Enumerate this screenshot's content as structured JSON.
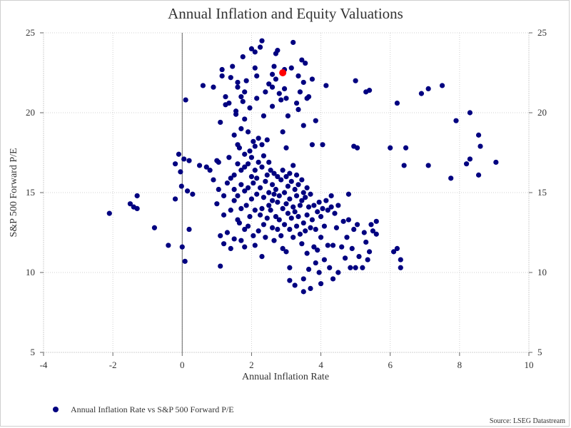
{
  "chart_data": {
    "type": "scatter",
    "title": "Annual Inflation and Equity Valuations",
    "xlabel": "Annual Inflation Rate",
    "ylabel": "S&P 500 Forward P/E",
    "xlim": [
      -4,
      10
    ],
    "ylim": [
      5,
      25
    ],
    "x_ticks": [
      "-4",
      "-2",
      "0",
      "2",
      "4",
      "6",
      "8",
      "10"
    ],
    "y_ticks": [
      "5",
      "10",
      "15",
      "20",
      "25"
    ],
    "y_ticks_right": [
      "5",
      "10",
      "15",
      "20",
      "25"
    ],
    "grid": true,
    "legend_position": "bottom-left",
    "source": "Source: LSEG Datastream",
    "colors": {
      "series": "#000080",
      "highlight": "#ff0000",
      "grid": "#d0d0d0",
      "zero_line": "#666666"
    },
    "series": [
      {
        "name": "Annual Inflation Rate vs S&P 500 Forward P/E",
        "points": [
          [
            -2.1,
            13.7
          ],
          [
            -1.5,
            14.3
          ],
          [
            -1.4,
            14.1
          ],
          [
            -1.3,
            14.8
          ],
          [
            -1.3,
            14.0
          ],
          [
            -0.8,
            12.8
          ],
          [
            -0.4,
            11.7
          ],
          [
            -0.2,
            14.6
          ],
          [
            -0.2,
            16.8
          ],
          [
            -0.1,
            17.4
          ],
          [
            -0.05,
            16.3
          ],
          [
            -0.02,
            15.4
          ],
          [
            0.0,
            11.6
          ],
          [
            0.05,
            17.1
          ],
          [
            0.08,
            10.7
          ],
          [
            0.1,
            20.8
          ],
          [
            0.15,
            15.1
          ],
          [
            0.2,
            17.0
          ],
          [
            0.2,
            12.7
          ],
          [
            0.3,
            14.9
          ],
          [
            0.5,
            16.7
          ],
          [
            0.6,
            21.7
          ],
          [
            0.7,
            16.6
          ],
          [
            0.8,
            16.4
          ],
          [
            0.9,
            15.8
          ],
          [
            0.9,
            21.6
          ],
          [
            1.0,
            14.3
          ],
          [
            1.0,
            17.0
          ],
          [
            1.05,
            15.2
          ],
          [
            1.05,
            16.9
          ],
          [
            1.1,
            10.4
          ],
          [
            1.1,
            12.3
          ],
          [
            1.1,
            19.4
          ],
          [
            1.15,
            22.3
          ],
          [
            1.2,
            11.8
          ],
          [
            1.2,
            13.6
          ],
          [
            1.2,
            14.8
          ],
          [
            1.25,
            20.5
          ],
          [
            1.25,
            21.0
          ],
          [
            1.3,
            12.5
          ],
          [
            1.3,
            15.6
          ],
          [
            1.35,
            17.2
          ],
          [
            1.4,
            11.5
          ],
          [
            1.4,
            13.9
          ],
          [
            1.4,
            15.9
          ],
          [
            1.4,
            22.2
          ],
          [
            1.45,
            22.9
          ],
          [
            1.5,
            12.1
          ],
          [
            1.5,
            14.5
          ],
          [
            1.5,
            15.2
          ],
          [
            1.5,
            16.1
          ],
          [
            1.5,
            18.6
          ],
          [
            1.55,
            20.1
          ],
          [
            1.6,
            13.3
          ],
          [
            1.6,
            14.8
          ],
          [
            1.6,
            16.8
          ],
          [
            1.6,
            18.0
          ],
          [
            1.6,
            21.6
          ],
          [
            1.65,
            13.1
          ],
          [
            1.65,
            17.8
          ],
          [
            1.7,
            12.0
          ],
          [
            1.7,
            14.0
          ],
          [
            1.7,
            15.5
          ],
          [
            1.7,
            16.4
          ],
          [
            1.7,
            19.0
          ],
          [
            1.7,
            21.0
          ],
          [
            1.75,
            20.7
          ],
          [
            1.75,
            23.5
          ],
          [
            1.8,
            11.6
          ],
          [
            1.8,
            12.7
          ],
          [
            1.8,
            15.1
          ],
          [
            1.8,
            16.6
          ],
          [
            1.8,
            17.4
          ],
          [
            1.8,
            21.3
          ],
          [
            1.85,
            14.2
          ],
          [
            1.85,
            22.0
          ],
          [
            1.9,
            12.9
          ],
          [
            1.9,
            15.3
          ],
          [
            1.9,
            16.8
          ],
          [
            1.9,
            18.8
          ],
          [
            1.95,
            13.5
          ],
          [
            1.95,
            17.6
          ],
          [
            1.95,
            20.3
          ],
          [
            2.0,
            14.6
          ],
          [
            2.0,
            16.0
          ],
          [
            2.0,
            17.2
          ],
          [
            2.0,
            24.0
          ],
          [
            2.05,
            12.3
          ],
          [
            2.05,
            15.6
          ],
          [
            2.05,
            18.2
          ],
          [
            2.1,
            11.7
          ],
          [
            2.1,
            13.9
          ],
          [
            2.1,
            16.4
          ],
          [
            2.1,
            17.9
          ],
          [
            2.1,
            23.8
          ],
          [
            2.15,
            14.9
          ],
          [
            2.15,
            15.9
          ],
          [
            2.15,
            22.3
          ],
          [
            2.2,
            12.6
          ],
          [
            2.2,
            16.9
          ],
          [
            2.2,
            18.4
          ],
          [
            2.25,
            13.6
          ],
          [
            2.25,
            15.3
          ],
          [
            2.25,
            24.1
          ],
          [
            2.3,
            11.0
          ],
          [
            2.3,
            14.0
          ],
          [
            2.3,
            16.6
          ],
          [
            2.3,
            18.0
          ],
          [
            2.3,
            24.5
          ],
          [
            2.35,
            13.0
          ],
          [
            2.35,
            14.7
          ],
          [
            2.35,
            17.3
          ],
          [
            2.4,
            12.2
          ],
          [
            2.4,
            15.7
          ],
          [
            2.4,
            21.3
          ],
          [
            2.45,
            13.4
          ],
          [
            2.45,
            16.1
          ],
          [
            2.45,
            18.3
          ],
          [
            2.5,
            14.2
          ],
          [
            2.5,
            15.0
          ],
          [
            2.5,
            16.9
          ],
          [
            2.5,
            21.8
          ],
          [
            2.55,
            13.9
          ],
          [
            2.55,
            16.4
          ],
          [
            2.6,
            12.8
          ],
          [
            2.6,
            14.5
          ],
          [
            2.6,
            15.5
          ],
          [
            2.6,
            21.6
          ],
          [
            2.65,
            12.0
          ],
          [
            2.65,
            14.9
          ],
          [
            2.65,
            16.2
          ],
          [
            2.65,
            22.9
          ],
          [
            2.7,
            13.5
          ],
          [
            2.7,
            15.2
          ],
          [
            2.7,
            22.1
          ],
          [
            2.7,
            23.7
          ],
          [
            2.75,
            12.7
          ],
          [
            2.75,
            14.4
          ],
          [
            2.75,
            16.0
          ],
          [
            2.75,
            23.9
          ],
          [
            2.8,
            13.3
          ],
          [
            2.8,
            14.8
          ],
          [
            2.8,
            21.2
          ],
          [
            2.85,
            12.3
          ],
          [
            2.85,
            15.8
          ],
          [
            2.85,
            20.8
          ],
          [
            2.9,
            11.5
          ],
          [
            2.9,
            14.0
          ],
          [
            2.9,
            16.4
          ],
          [
            2.9,
            18.8
          ],
          [
            2.95,
            13.0
          ],
          [
            2.95,
            15.0
          ],
          [
            2.95,
            21.5
          ],
          [
            3.0,
            11.3
          ],
          [
            3.0,
            14.3
          ],
          [
            3.0,
            16.0
          ],
          [
            3.0,
            17.8
          ],
          [
            3.05,
            13.7
          ],
          [
            3.05,
            15.4
          ],
          [
            3.05,
            19.8
          ],
          [
            3.1,
            12.7
          ],
          [
            3.1,
            14.6
          ],
          [
            3.1,
            16.2
          ],
          [
            3.1,
            10.3
          ],
          [
            3.1,
            9.5
          ],
          [
            3.15,
            13.4
          ],
          [
            3.15,
            15.7
          ],
          [
            3.15,
            22.8
          ],
          [
            3.2,
            12.2
          ],
          [
            3.2,
            14.1
          ],
          [
            3.2,
            16.7
          ],
          [
            3.2,
            24.4
          ],
          [
            3.25,
            13.8
          ],
          [
            3.25,
            15.2
          ],
          [
            3.25,
            9.2
          ],
          [
            3.3,
            12.9
          ],
          [
            3.3,
            14.8
          ],
          [
            3.3,
            16.1
          ],
          [
            3.35,
            13.5
          ],
          [
            3.35,
            15.5
          ],
          [
            3.35,
            20.2
          ],
          [
            3.4,
            12.4
          ],
          [
            3.4,
            14.2
          ],
          [
            3.4,
            21.3
          ],
          [
            3.45,
            11.8
          ],
          [
            3.45,
            14.5
          ],
          [
            3.45,
            15.8
          ],
          [
            3.45,
            23.3
          ],
          [
            3.5,
            13.1
          ],
          [
            3.5,
            15.0
          ],
          [
            3.5,
            9.6
          ],
          [
            3.5,
            8.8
          ],
          [
            3.55,
            12.6
          ],
          [
            3.55,
            14.7
          ],
          [
            3.55,
            23.1
          ],
          [
            3.6,
            11.2
          ],
          [
            3.6,
            13.6
          ],
          [
            3.6,
            15.3
          ],
          [
            3.65,
            10.2
          ],
          [
            3.65,
            14.1
          ],
          [
            3.65,
            21.0
          ],
          [
            3.7,
            12.8
          ],
          [
            3.7,
            14.9
          ],
          [
            3.7,
            9.0
          ],
          [
            3.75,
            13.3
          ],
          [
            3.75,
            18.0
          ],
          [
            3.75,
            22.1
          ],
          [
            3.8,
            11.6
          ],
          [
            3.8,
            14.2
          ],
          [
            3.85,
            10.6
          ],
          [
            3.85,
            12.7
          ],
          [
            3.85,
            19.5
          ],
          [
            3.9,
            13.8
          ],
          [
            3.9,
            11.4
          ],
          [
            3.95,
            14.4
          ],
          [
            3.95,
            10.0
          ],
          [
            4.0,
            12.2
          ],
          [
            4.0,
            13.5
          ],
          [
            4.0,
            9.3
          ],
          [
            4.05,
            14.0
          ],
          [
            4.05,
            18.0
          ],
          [
            4.1,
            10.8
          ],
          [
            4.1,
            12.9
          ],
          [
            4.15,
            14.5
          ],
          [
            4.15,
            21.7
          ],
          [
            4.2,
            11.7
          ],
          [
            4.2,
            13.9
          ],
          [
            4.25,
            10.3
          ],
          [
            4.3,
            14.8
          ],
          [
            4.3,
            14.1
          ],
          [
            4.35,
            11.7
          ],
          [
            4.35,
            9.6
          ],
          [
            4.4,
            13.7
          ],
          [
            4.45,
            12.8
          ],
          [
            4.5,
            10.0
          ],
          [
            4.5,
            14.2
          ],
          [
            4.6,
            11.6
          ],
          [
            4.65,
            13.2
          ],
          [
            4.7,
            10.9
          ],
          [
            4.75,
            12.2
          ],
          [
            4.8,
            14.9
          ],
          [
            4.8,
            13.3
          ],
          [
            4.85,
            10.3
          ],
          [
            4.9,
            11.5
          ],
          [
            4.95,
            12.7
          ],
          [
            4.95,
            17.9
          ],
          [
            5.0,
            10.3
          ],
          [
            5.0,
            22.0
          ],
          [
            5.05,
            13.0
          ],
          [
            5.05,
            17.8
          ],
          [
            5.1,
            11.0
          ],
          [
            5.2,
            10.3
          ],
          [
            5.25,
            12.5
          ],
          [
            5.3,
            11.9
          ],
          [
            5.3,
            21.3
          ],
          [
            5.35,
            10.8
          ],
          [
            5.4,
            11.3
          ],
          [
            5.4,
            21.4
          ],
          [
            5.45,
            13.0
          ],
          [
            5.5,
            12.6
          ],
          [
            5.6,
            12.4
          ],
          [
            5.6,
            13.2
          ],
          [
            6.0,
            17.8
          ],
          [
            6.1,
            11.3
          ],
          [
            6.2,
            11.5
          ],
          [
            6.2,
            20.6
          ],
          [
            6.3,
            10.3
          ],
          [
            6.3,
            10.8
          ],
          [
            6.4,
            16.7
          ],
          [
            6.45,
            17.8
          ],
          [
            6.9,
            21.2
          ],
          [
            7.1,
            16.7
          ],
          [
            7.1,
            21.5
          ],
          [
            7.5,
            21.7
          ],
          [
            7.75,
            15.9
          ],
          [
            7.9,
            19.5
          ],
          [
            8.2,
            16.8
          ],
          [
            8.3,
            17.1
          ],
          [
            8.3,
            20.0
          ],
          [
            8.55,
            18.6
          ],
          [
            8.55,
            16.1
          ],
          [
            8.6,
            17.9
          ],
          [
            9.05,
            16.9
          ],
          [
            1.15,
            22.7
          ],
          [
            1.6,
            21.9
          ],
          [
            2.1,
            22.8
          ],
          [
            2.6,
            22.4
          ],
          [
            2.95,
            22.7
          ],
          [
            3.35,
            22.3
          ],
          [
            3.5,
            21.9
          ],
          [
            1.35,
            20.6
          ],
          [
            1.55,
            19.9
          ],
          [
            2.15,
            20.9
          ],
          [
            2.6,
            20.4
          ],
          [
            3.0,
            20.9
          ],
          [
            3.3,
            20.6
          ],
          [
            3.6,
            20.9
          ],
          [
            1.8,
            19.6
          ],
          [
            2.35,
            19.8
          ],
          [
            3.5,
            19.2
          ]
        ]
      }
    ],
    "highlight_point": [
      2.9,
      22.5
    ]
  }
}
